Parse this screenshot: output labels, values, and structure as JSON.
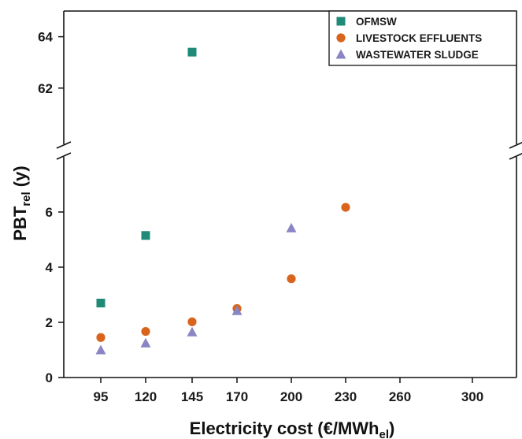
{
  "chart_data": {
    "type": "scatter",
    "xlabel": "Electricity cost (€/MWh",
    "xlabel_sub": "el",
    "xlabel_close": ")",
    "ylabel": "PBT",
    "ylabel_sub": "rel",
    "ylabel_unit": " (y)",
    "x_ticks": [
      95,
      120,
      145,
      170,
      200,
      230,
      260,
      300
    ],
    "y_ticks_lower": [
      0,
      2,
      4,
      6
    ],
    "y_ticks_upper": [
      62,
      64
    ],
    "ylim_lower": [
      0,
      7.2
    ],
    "ylim_upper": [
      59.6,
      65
    ],
    "y_break": true,
    "grid": false,
    "legend_position": "top-right",
    "series": [
      {
        "name": "OFMSW",
        "marker": "square",
        "color": "#1f8a78",
        "x": [
          95,
          120,
          145
        ],
        "y": [
          2.7,
          5.15,
          63.4
        ]
      },
      {
        "name": "LIVESTOCK EFFLUENTS",
        "marker": "circle",
        "color": "#d9641e",
        "x": [
          95,
          120,
          145,
          170,
          200,
          230
        ],
        "y": [
          1.45,
          1.67,
          2.02,
          2.5,
          3.58,
          6.17
        ]
      },
      {
        "name": "WASTEWATER SLUDGE",
        "marker": "triangle",
        "color": "#8a85c4",
        "x": [
          95,
          120,
          145,
          170,
          200
        ],
        "y": [
          1.0,
          1.25,
          1.65,
          2.42,
          5.42
        ]
      }
    ]
  }
}
